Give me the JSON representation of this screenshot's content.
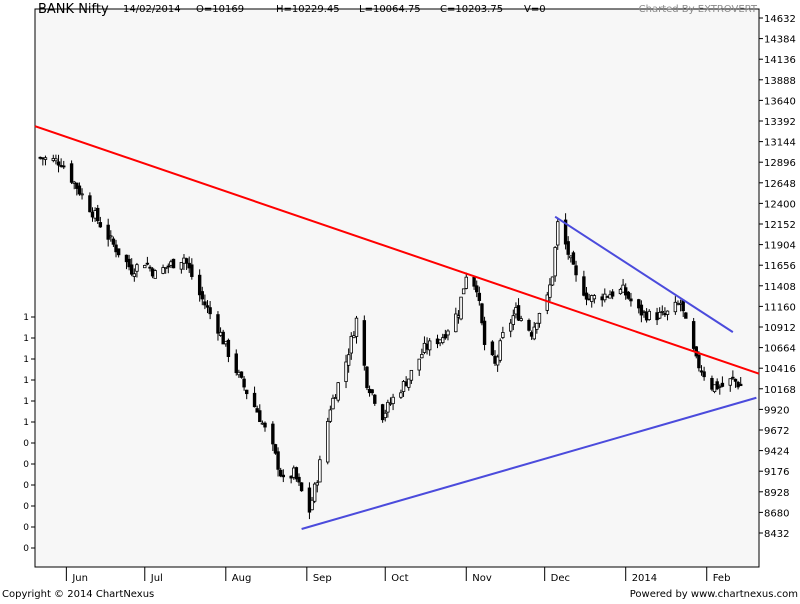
{
  "header": {
    "title": "BANK Nifty",
    "date": "14/02/2014",
    "open": "O=10169",
    "high": "H=10229.45",
    "low": "L=10064.75",
    "close": "C=10203.75",
    "volume": "V=0",
    "charted_by": "Charted By EXTROVERT"
  },
  "footer": {
    "copyright": "Copyright © 2014 ChartNexus",
    "powered_by": "Powered by www.chartnexus.com"
  },
  "left_axis_ticks": [
    "1",
    "1",
    "1",
    "1",
    "1",
    "1",
    "0",
    "0",
    "0",
    "0",
    "0",
    "0"
  ],
  "chart_data": {
    "type": "candlestick",
    "title": "BANK Nifty",
    "x_ticks": [
      "Jun",
      "Jul",
      "Aug",
      "Sep",
      "Oct",
      "Nov",
      "Dec",
      "2014",
      "Feb"
    ],
    "y_ticks": [
      14632,
      14384,
      14136,
      13888,
      13640,
      13392,
      13144,
      12896,
      12648,
      12400,
      12152,
      11904,
      11656,
      11408,
      11160,
      10912,
      10664,
      10416,
      10168,
      9920,
      9672,
      9424,
      9176,
      8928,
      8680,
      8432
    ],
    "ylim": [
      7500,
      14632
    ],
    "x_range": [
      "2013-05-20",
      "2014-02-21"
    ],
    "grid": false,
    "close_path": [
      [
        "2013-05-22",
        12950
      ],
      [
        "2013-05-30",
        12900
      ],
      [
        "2013-06-05",
        12600
      ],
      [
        "2013-06-12",
        12250
      ],
      [
        "2013-06-19",
        11900
      ],
      [
        "2013-06-26",
        11600
      ],
      [
        "2013-07-01",
        11700
      ],
      [
        "2013-07-05",
        11550
      ],
      [
        "2013-07-10",
        11650
      ],
      [
        "2013-07-16",
        11750
      ],
      [
        "2013-07-22",
        11300
      ],
      [
        "2013-07-29",
        10900
      ],
      [
        "2013-08-02",
        10600
      ],
      [
        "2013-08-07",
        10250
      ],
      [
        "2013-08-13",
        9900
      ],
      [
        "2013-08-19",
        9450
      ],
      [
        "2013-08-23",
        9050
      ],
      [
        "2013-08-27",
        9150
      ],
      [
        "2013-09-02",
        8700
      ],
      [
        "2013-09-05",
        9100
      ],
      [
        "2013-09-10",
        9950
      ],
      [
        "2013-09-16",
        10500
      ],
      [
        "2013-09-20",
        11000
      ],
      [
        "2013-09-24",
        10250
      ],
      [
        "2013-09-30",
        9850
      ],
      [
        "2013-10-04",
        10050
      ],
      [
        "2013-10-10",
        10300
      ],
      [
        "2013-10-16",
        10650
      ],
      [
        "2013-10-23",
        10800
      ],
      [
        "2013-10-29",
        11100
      ],
      [
        "2013-11-01",
        11550
      ],
      [
        "2013-11-05",
        11400
      ],
      [
        "2013-11-08",
        10700
      ],
      [
        "2013-11-12",
        10450
      ],
      [
        "2013-11-15",
        10800
      ],
      [
        "2013-11-20",
        11100
      ],
      [
        "2013-11-26",
        10850
      ],
      [
        "2013-11-29",
        11100
      ],
      [
        "2013-12-02",
        11250
      ],
      [
        "2013-12-04",
        11550
      ],
      [
        "2013-12-06",
        12150
      ],
      [
        "2013-12-09",
        11900
      ],
      [
        "2013-12-13",
        11500
      ],
      [
        "2013-12-18",
        11250
      ],
      [
        "2013-12-24",
        11300
      ],
      [
        "2013-12-31",
        11350
      ],
      [
        "2014-01-06",
        11100
      ],
      [
        "2014-01-10",
        11050
      ],
      [
        "2014-01-16",
        11050
      ],
      [
        "2014-01-22",
        11200
      ],
      [
        "2014-01-24",
        10950
      ],
      [
        "2014-01-28",
        10500
      ],
      [
        "2014-02-03",
        10200
      ],
      [
        "2014-02-07",
        10200
      ],
      [
        "2014-02-11",
        10280
      ],
      [
        "2014-02-14",
        10204
      ]
    ],
    "trendlines": [
      {
        "color": "#ff0000",
        "from": [
          "2013-05-20",
          13330
        ],
        "to": [
          "2014-02-21",
          10350
        ]
      },
      {
        "color": "#4b4bdc",
        "from": [
          "2013-08-30",
          8480
        ],
        "to": [
          "2014-02-20",
          10060
        ]
      },
      {
        "color": "#4b4bdc",
        "from": [
          "2013-12-05",
          12240
        ],
        "to": [
          "2014-02-11",
          10850
        ]
      }
    ]
  }
}
